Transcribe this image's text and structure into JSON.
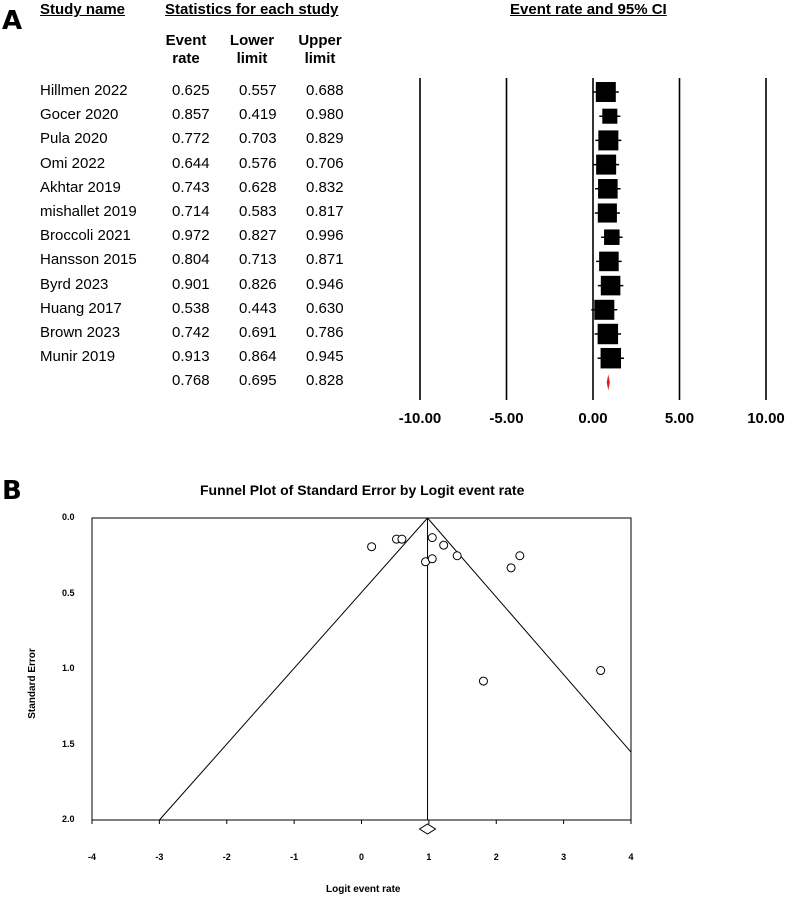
{
  "panel_a": {
    "label": "A",
    "headers": {
      "study_name": "Study name",
      "statistics": "Statistics for each study",
      "event_rate_ci": "Event rate and 95% CI"
    },
    "columns": [
      "Event\nrate",
      "Lower\nlimit",
      "Upper\nlimit"
    ]
  },
  "panel_b": {
    "label": "B"
  },
  "chart_data": [
    {
      "type": "forest",
      "title": "Event rate and 95% CI",
      "studies": [
        {
          "name": "Hillmen 2022",
          "event_rate": "0.625",
          "lower": "0.557",
          "upper": "0.688",
          "point": 0.625,
          "weight": 1.0
        },
        {
          "name": "Gocer 2020",
          "event_rate": "0.857",
          "lower": "0.419",
          "upper": "0.980",
          "point": 0.857,
          "weight": 0.45
        },
        {
          "name": "Pula 2020",
          "event_rate": "0.772",
          "lower": "0.703",
          "upper": "0.829",
          "point": 0.772,
          "weight": 1.0
        },
        {
          "name": "Omi 2022",
          "event_rate": "0.644",
          "lower": "0.576",
          "upper": "0.706",
          "point": 0.644,
          "weight": 1.0
        },
        {
          "name": "Akhtar 2019",
          "event_rate": "0.743",
          "lower": "0.628",
          "upper": "0.832",
          "point": 0.743,
          "weight": 0.95
        },
        {
          "name": "mishallet 2019",
          "event_rate": "0.714",
          "lower": "0.583",
          "upper": "0.817",
          "point": 0.714,
          "weight": 0.9
        },
        {
          "name": "Broccoli 2021",
          "event_rate": "0.972",
          "lower": "0.827",
          "upper": "0.996",
          "point": 0.972,
          "weight": 0.5
        },
        {
          "name": "Hansson 2015",
          "event_rate": "0.804",
          "lower": "0.713",
          "upper": "0.871",
          "point": 0.804,
          "weight": 0.95
        },
        {
          "name": "Byrd 2023",
          "event_rate": "0.901",
          "lower": "0.826",
          "upper": "0.946",
          "point": 0.901,
          "weight": 0.95
        },
        {
          "name": "Huang 2017",
          "event_rate": "0.538",
          "lower": "0.443",
          "upper": "0.630",
          "point": 0.538,
          "weight": 1.0
        },
        {
          "name": "Brown 2023",
          "event_rate": "0.742",
          "lower": "0.691",
          "upper": "0.786",
          "point": 0.742,
          "weight": 1.05
        },
        {
          "name": "Munir 2019",
          "event_rate": "0.913",
          "lower": "0.864",
          "upper": "0.945",
          "point": 0.913,
          "weight": 1.05
        }
      ],
      "pooled": {
        "event_rate": "0.768",
        "lower": "0.695",
        "upper": "0.828",
        "point": 0.768
      },
      "xlim": [
        -10,
        10
      ],
      "xticks": [
        "-10.00",
        "-5.00",
        "0.00",
        "5.00",
        "10.00"
      ],
      "xtick_values": [
        -10,
        -5,
        0,
        5,
        10
      ],
      "gridlines": [
        -10,
        -5,
        0,
        5,
        10
      ],
      "marker_color": "#000000",
      "pooled_color": "#e02020"
    },
    {
      "type": "scatter",
      "title": "Funnel Plot of Standard Error by Logit event rate",
      "xlabel": "Logit event rate",
      "ylabel": "Standard Error",
      "xlim": [
        -4,
        4
      ],
      "ylim": [
        0,
        2
      ],
      "xticks": [
        "-4",
        "-3",
        "-2",
        "-1",
        "0",
        "1",
        "2",
        "3",
        "4"
      ],
      "xtick_values": [
        -4,
        -3,
        -2,
        -1,
        0,
        1,
        2,
        3,
        4
      ],
      "yticks": [
        "0.0",
        "0.5",
        "1.0",
        "1.5",
        "2.0"
      ],
      "ytick_values": [
        0,
        0.5,
        1,
        1.5,
        2
      ],
      "points": [
        {
          "x": 0.15,
          "y": 0.19
        },
        {
          "x": 0.52,
          "y": 0.14
        },
        {
          "x": 0.6,
          "y": 0.14
        },
        {
          "x": 0.95,
          "y": 0.29
        },
        {
          "x": 1.05,
          "y": 0.13
        },
        {
          "x": 1.05,
          "y": 0.27
        },
        {
          "x": 1.22,
          "y": 0.18
        },
        {
          "x": 1.42,
          "y": 0.25
        },
        {
          "x": 2.22,
          "y": 0.33
        },
        {
          "x": 2.35,
          "y": 0.25
        },
        {
          "x": 1.81,
          "y": 1.08
        },
        {
          "x": 3.55,
          "y": 1.01
        }
      ],
      "pooled_estimate": 0.98,
      "funnel_left_at_max": -3.0,
      "funnel_right_at_edge": {
        "x": 4.0,
        "y": 1.55
      }
    }
  ]
}
